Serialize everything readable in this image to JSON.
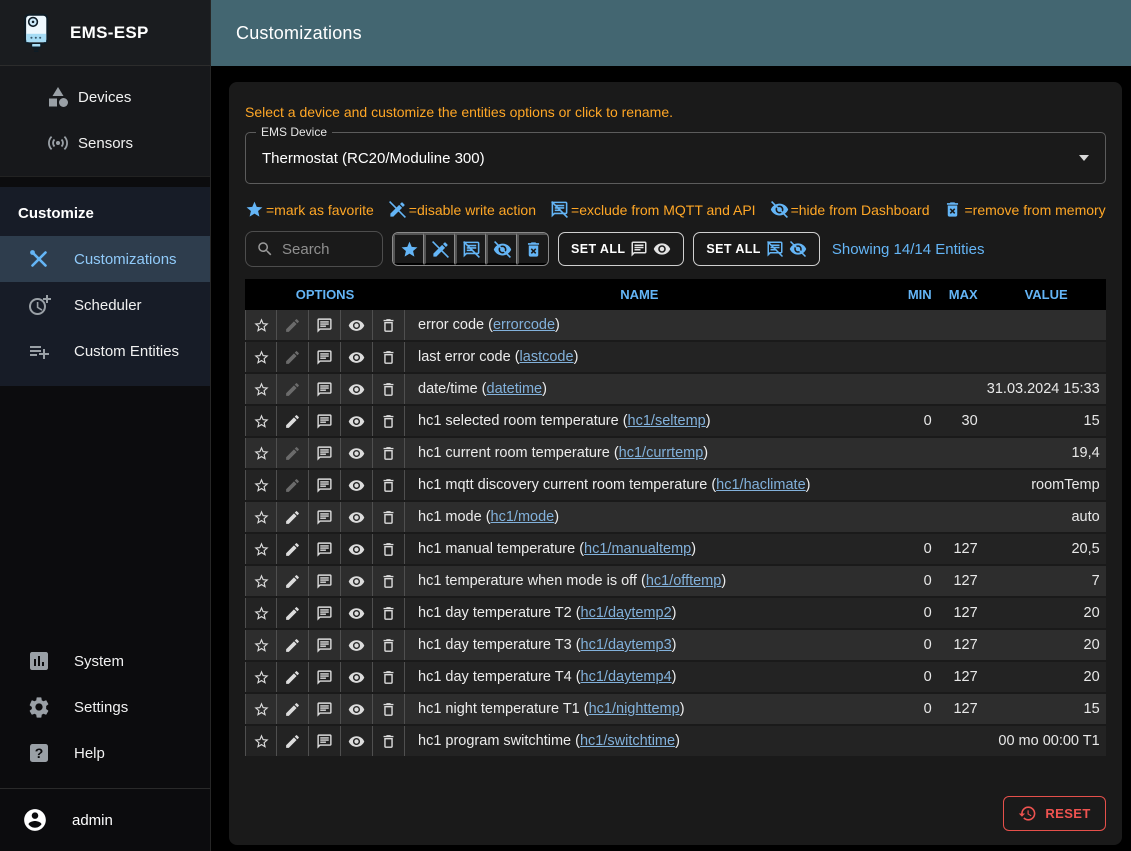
{
  "app": {
    "title": "EMS-ESP"
  },
  "header": {
    "title": "Customizations"
  },
  "colors": {
    "accent": "#64b5f6",
    "warning": "#ffa726",
    "error": "#ef5350",
    "appbar": "#436671"
  },
  "sidebar": {
    "top_items": [
      {
        "icon": "category-icon",
        "label": "Devices"
      },
      {
        "icon": "sensors-icon",
        "label": "Sensors"
      }
    ],
    "section_header": "Customize",
    "section_items": [
      {
        "icon": "tools-icon",
        "label": "Customizations",
        "active": true
      },
      {
        "icon": "clock-plus-icon",
        "label": "Scheduler",
        "active": false
      },
      {
        "icon": "playlist-add-icon",
        "label": "Custom Entities",
        "active": false
      }
    ],
    "bottom_items": [
      {
        "icon": "bar-chart-icon",
        "label": "System"
      },
      {
        "icon": "gear-icon",
        "label": "Settings"
      },
      {
        "icon": "help-icon",
        "label": "Help"
      }
    ],
    "user": "admin"
  },
  "main": {
    "note": "Select a device and customize the entities options or click to rename.",
    "device_select": {
      "label": "EMS Device",
      "value": "Thermostat (RC20/Moduline 300)"
    },
    "legend": [
      {
        "icon": "star-icon",
        "text": "=mark as favorite"
      },
      {
        "icon": "edit-off-icon",
        "text": "=disable write action"
      },
      {
        "icon": "comment-off-icon",
        "text": "=exclude from MQTT and API"
      },
      {
        "icon": "eye-off-icon",
        "text": "=hide from Dashboard"
      },
      {
        "icon": "trash-x-icon",
        "text": "=remove from memory"
      }
    ],
    "toolbar": {
      "search_placeholder": "Search",
      "set_all_label": "SET ALL",
      "showing": "Showing 14/14 Entities"
    },
    "table": {
      "headers": {
        "options": "OPTIONS",
        "name": "NAME",
        "min": "MIN",
        "max": "MAX",
        "value": "VALUE"
      },
      "rows": [
        {
          "pre": "error code (",
          "link": "errorcode",
          "suffix": ")",
          "min": "",
          "max": "",
          "value": "",
          "editable": false
        },
        {
          "pre": "last error code (",
          "link": "lastcode",
          "suffix": ")",
          "min": "",
          "max": "",
          "value": "",
          "editable": false
        },
        {
          "pre": "date/time (",
          "link": "datetime",
          "suffix": ")",
          "min": "",
          "max": "",
          "value": "31.03.2024 15:33",
          "editable": false
        },
        {
          "pre": "hc1 selected room temperature (",
          "link": "hc1/seltemp",
          "suffix": ")",
          "min": "0",
          "max": "30",
          "value": "15",
          "editable": true
        },
        {
          "pre": "hc1 current room temperature (",
          "link": "hc1/currtemp",
          "suffix": ")",
          "min": "",
          "max": "",
          "value": "19,4",
          "editable": false
        },
        {
          "pre": "hc1 mqtt discovery current room temperature (",
          "link": "hc1/haclimate",
          "suffix": ")",
          "min": "",
          "max": "",
          "value": "roomTemp",
          "editable": false
        },
        {
          "pre": "hc1 mode (",
          "link": "hc1/mode",
          "suffix": ")",
          "min": "",
          "max": "",
          "value": "auto",
          "editable": true
        },
        {
          "pre": "hc1 manual temperature (",
          "link": "hc1/manualtemp",
          "suffix": ")",
          "min": "0",
          "max": "127",
          "value": "20,5",
          "editable": true
        },
        {
          "pre": "hc1 temperature when mode is off (",
          "link": "hc1/offtemp",
          "suffix": ")",
          "min": "0",
          "max": "127",
          "value": "7",
          "editable": true
        },
        {
          "pre": "hc1 day temperature T2 (",
          "link": "hc1/daytemp2",
          "suffix": ")",
          "min": "0",
          "max": "127",
          "value": "20",
          "editable": true
        },
        {
          "pre": "hc1 day temperature T3 (",
          "link": "hc1/daytemp3",
          "suffix": ")",
          "min": "0",
          "max": "127",
          "value": "20",
          "editable": true
        },
        {
          "pre": "hc1 day temperature T4 (",
          "link": "hc1/daytemp4",
          "suffix": ")",
          "min": "0",
          "max": "127",
          "value": "20",
          "editable": true
        },
        {
          "pre": "hc1 night temperature T1 (",
          "link": "hc1/nighttemp",
          "suffix": ")",
          "min": "0",
          "max": "127",
          "value": "15",
          "editable": true
        },
        {
          "pre": "hc1 program switchtime (",
          "link": "hc1/switchtime",
          "suffix": ")",
          "min": "",
          "max": "",
          "value": "00 mo 00:00 T1",
          "editable": true
        }
      ]
    },
    "reset_label": "RESET"
  }
}
